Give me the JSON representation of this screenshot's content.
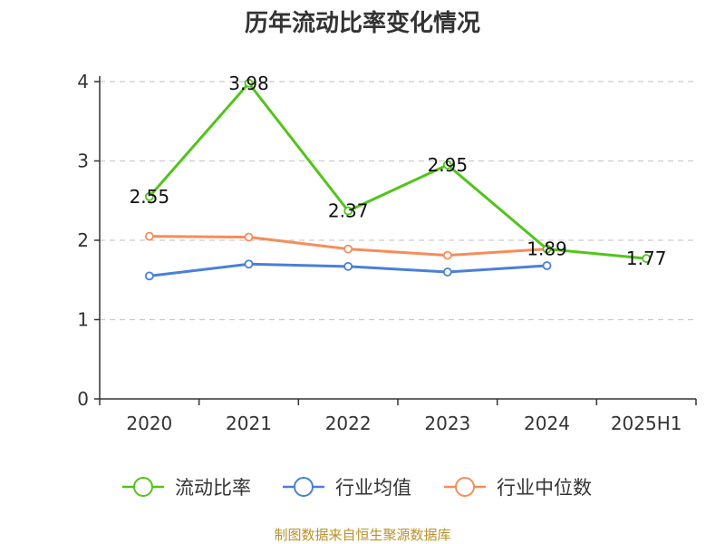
{
  "chart_data": {
    "type": "line",
    "title": "历年流动比率变化情况",
    "categories": [
      "2020",
      "2021",
      "2022",
      "2023",
      "2024",
      "2025H1"
    ],
    "ylim": [
      0,
      4
    ],
    "yticks": [
      "0",
      "1",
      "2",
      "3",
      "4"
    ],
    "grid": true,
    "legend_position": "bottom",
    "series": [
      {
        "name": "流动比率",
        "color": "#52c41a",
        "values": [
          2.55,
          3.98,
          2.37,
          2.95,
          1.89,
          1.77
        ],
        "labels": [
          "2.55",
          "3.98",
          "2.37",
          "2.95",
          "1.89",
          "1.77"
        ]
      },
      {
        "name": "行业均值",
        "color": "#4a7fd9",
        "values": [
          1.55,
          1.7,
          1.67,
          1.6,
          1.68,
          null
        ]
      },
      {
        "name": "行业中位数",
        "color": "#f58d5a",
        "values": [
          2.05,
          2.04,
          1.89,
          1.81,
          1.89,
          null
        ]
      }
    ]
  },
  "footer": {
    "source": "制图数据来自恒生聚源数据库"
  }
}
